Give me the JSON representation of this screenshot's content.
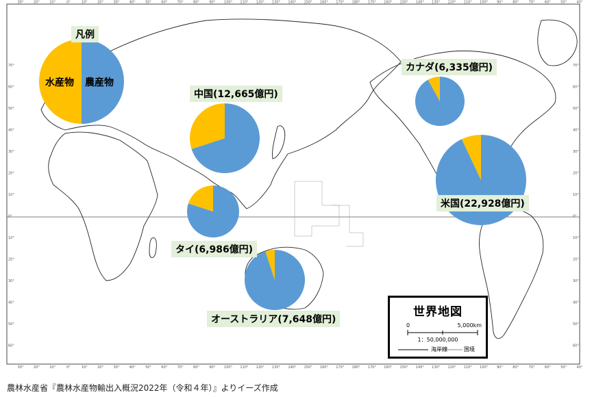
{
  "legend": {
    "title": "凡例",
    "agri_label": "農産物",
    "fish_label": "水産物"
  },
  "colors": {
    "agriculture": "#5b9bd5",
    "fisheries": "#ffc000",
    "label_bg": "#e2efd9"
  },
  "countries": [
    {
      "name_label": "中国(12,665億円)",
      "agri_share": 0.7
    },
    {
      "name_label": "タイ(6,986億円)",
      "agri_share": 0.8
    },
    {
      "name_label": "オーストラリア(7,648億円)",
      "agri_share": 0.95
    },
    {
      "name_label": "カナダ(6,335億円)",
      "agri_share": 0.92
    },
    {
      "name_label": "米国(22,928億円)",
      "agri_share": 0.93
    }
  ],
  "map_box": {
    "title": "世界地図",
    "scale_start": "0",
    "scale_end": "5,000km",
    "ratio": "1：50,000,000",
    "coastline": "海岸線",
    "border": "国境"
  },
  "lon_ticks": [
    "30°",
    "20°",
    "10°",
    "0°",
    "10°",
    "20°",
    "30°",
    "40°",
    "50°",
    "60°",
    "70°",
    "80°",
    "90°",
    "100°",
    "110°",
    "120°",
    "130°",
    "140°",
    "150°",
    "160°",
    "170°",
    "180°",
    "170°",
    "160°",
    "150°",
    "140°",
    "130°",
    "120°",
    "110°",
    "100°",
    "90°",
    "80°",
    "70°",
    "60°",
    "50°",
    "40°"
  ],
  "lat_ticks": [
    "70°",
    "60°",
    "50°",
    "40°",
    "30°",
    "20°",
    "10°",
    "0°",
    "10°",
    "20°",
    "30°",
    "40°",
    "50°",
    "60°"
  ],
  "source": "農林水産省『農林水産物輸出入概況2022年（令和４年）』よりイーズ作成"
}
